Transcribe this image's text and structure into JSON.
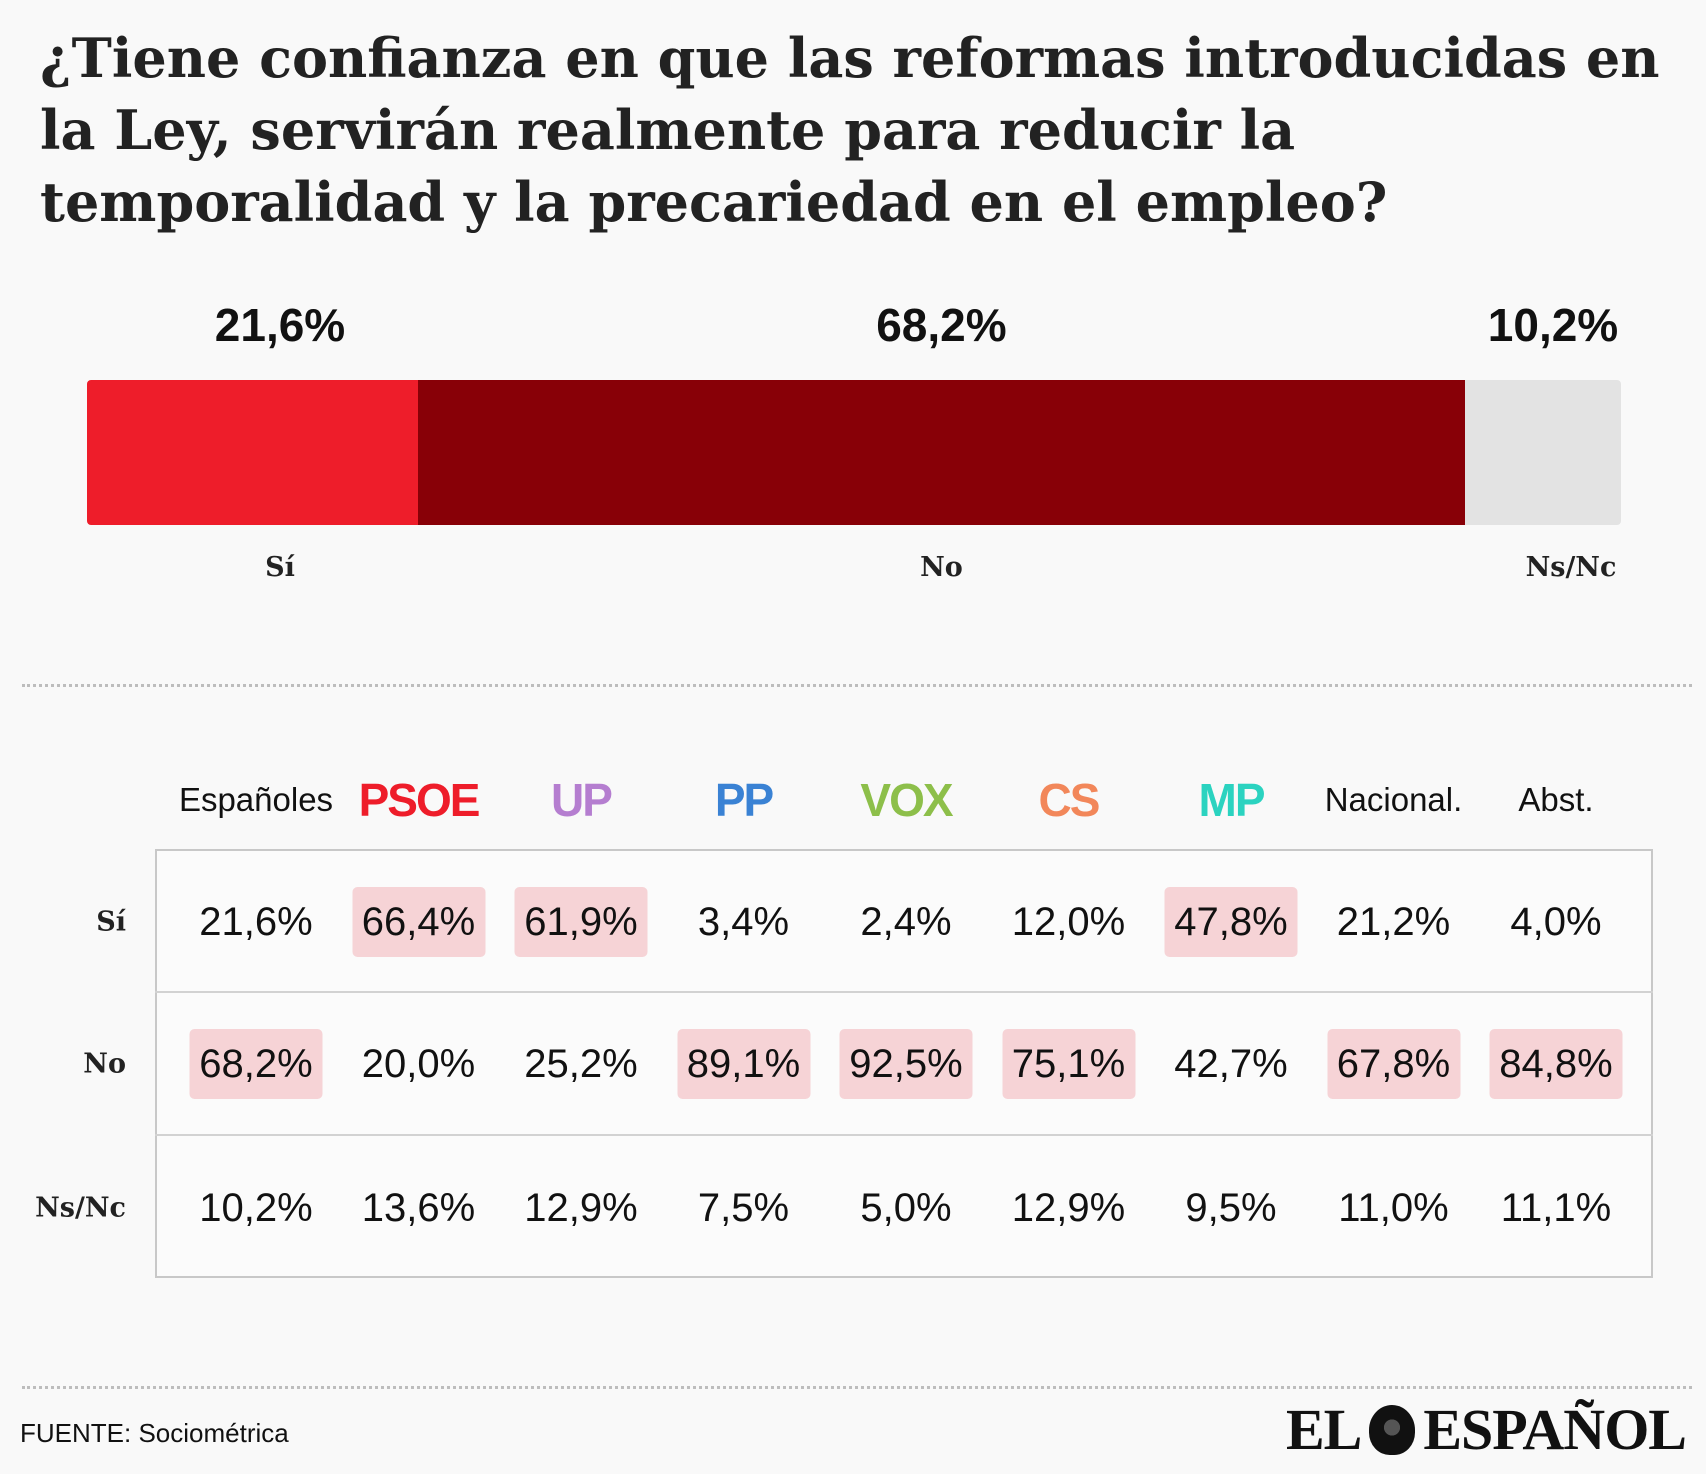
{
  "title": "¿Tiene confianza en que las reformas introducidas en la Ley, servirán realmente para reducir la temporalidad y la precariedad en el empleo?",
  "chart_data": [
    {
      "type": "bar",
      "orientation": "horizontal-stacked",
      "categories": [
        "Sí",
        "No",
        "Ns/Nc"
      ],
      "values": [
        21.6,
        68.2,
        10.2
      ],
      "value_labels": [
        "21,6%",
        "68,2%",
        "10,2%"
      ],
      "colors": [
        "#ee1d2a",
        "#880007",
        "#e3e3e3"
      ]
    },
    {
      "type": "table",
      "columns": [
        {
          "label": "Españoles",
          "color": "#111111",
          "style": "plain"
        },
        {
          "label": "PSOE",
          "color": "#ee1d2a",
          "style": "party"
        },
        {
          "label": "UP",
          "color": "#b57ed0",
          "style": "party"
        },
        {
          "label": "PP",
          "color": "#3a82d4",
          "style": "party"
        },
        {
          "label": "VOX",
          "color": "#8dbf4a",
          "style": "party"
        },
        {
          "label": "CS",
          "color": "#f2875a",
          "style": "party"
        },
        {
          "label": "MP",
          "color": "#2bd3c0",
          "style": "party"
        },
        {
          "label": "Nacional.",
          "color": "#111111",
          "style": "plain"
        },
        {
          "label": "Abst.",
          "color": "#111111",
          "style": "plain"
        }
      ],
      "rows": [
        {
          "label": "Sí",
          "values": [
            "21,6%",
            "66,4%",
            "61,9%",
            "3,4%",
            "2,4%",
            "12,0%",
            "47,8%",
            "21,2%",
            "4,0%"
          ],
          "highlight": [
            false,
            true,
            true,
            false,
            false,
            false,
            true,
            false,
            false
          ]
        },
        {
          "label": "No",
          "values": [
            "68,2%",
            "20,0%",
            "25,2%",
            "89,1%",
            "92,5%",
            "75,1%",
            "42,7%",
            "67,8%",
            "84,8%"
          ],
          "highlight": [
            true,
            false,
            false,
            true,
            true,
            true,
            false,
            true,
            true
          ]
        },
        {
          "label": "Ns/Nc",
          "values": [
            "10,2%",
            "13,6%",
            "12,9%",
            "7,5%",
            "5,0%",
            "12,9%",
            "9,5%",
            "11,0%",
            "11,1%"
          ],
          "highlight": [
            false,
            false,
            false,
            false,
            false,
            false,
            false,
            false,
            false
          ]
        }
      ],
      "highlight_color": "#f6d3d6"
    }
  ],
  "source": "FUENTE: Sociométrica",
  "logo": {
    "left": "EL",
    "right": "ESPAÑOL",
    "icon": "lion-icon"
  }
}
